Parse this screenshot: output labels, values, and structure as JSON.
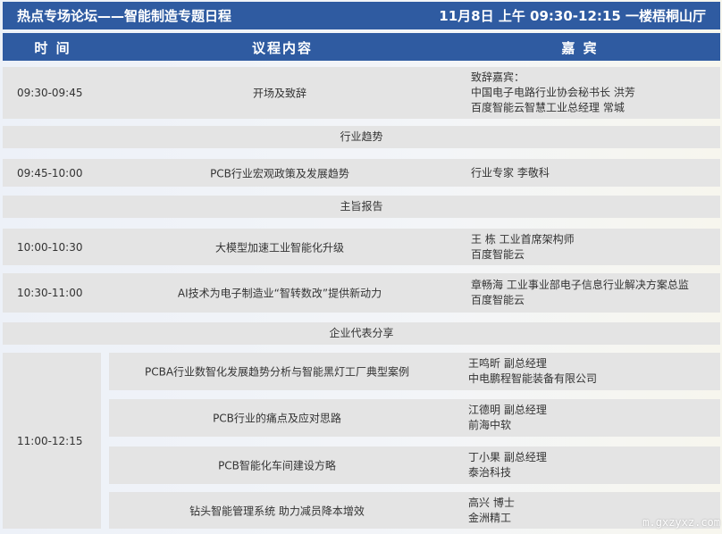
{
  "title": {
    "left": "热点专场论坛——智能制造专题日程",
    "right": "11月8日 上午 09:30-12:15 一楼梧桐山厅"
  },
  "header": {
    "time": "时 间",
    "topic": "议程内容",
    "guest": "嘉 宾"
  },
  "rows": [
    {
      "time": "09:30-09:45",
      "topic": "开场及致辞",
      "guest": [
        "致辞嘉宾：",
        "中国电子电路行业协会秘书长 洪芳",
        "百度智能云智慧工业总经理 常城"
      ]
    },
    {
      "section": "行业趋势"
    },
    {
      "time": "09:45-10:00",
      "topic": "PCB行业宏观政策及发展趋势",
      "guest": [
        "行业专家 李敬科"
      ]
    },
    {
      "section": "主旨报告"
    },
    {
      "time": "10:00-10:30",
      "topic": "大模型加速工业智能化升级",
      "guest": [
        "王 栋 工业首席架构师",
        "百度智能云"
      ]
    },
    {
      "time": "10:30-11:00",
      "topic": "AI技术为电子制造业“智转数改”提供新动力",
      "guest": [
        "章畅海 工业事业部电子信息行业解决方案总监",
        "百度智能云"
      ]
    },
    {
      "section": "企业代表分享"
    }
  ],
  "block": {
    "time": "11:00-12:15",
    "items": [
      {
        "topic": "PCBA行业数智化发展趋势分析与智能黑灯工厂典型案例",
        "guest": [
          "王鸣昕 副总经理",
          "中电鹏程智能装备有限公司"
        ]
      },
      {
        "topic": "PCB行业的痛点及应对思路",
        "guest": [
          "江德明 副总经理",
          "前海中软"
        ]
      },
      {
        "topic": "PCB智能化车间建设方略",
        "guest": [
          "丁小果 副总经理",
          "泰治科技"
        ]
      },
      {
        "topic": "钻头智能管理系统 助力减员降本增效",
        "guest": [
          "高兴 博士",
          "金洲精工"
        ]
      }
    ]
  },
  "watermark": "m.gxzyxz.com",
  "colors": {
    "accent": "#2f5ba1",
    "row": "#e4e4e4"
  }
}
